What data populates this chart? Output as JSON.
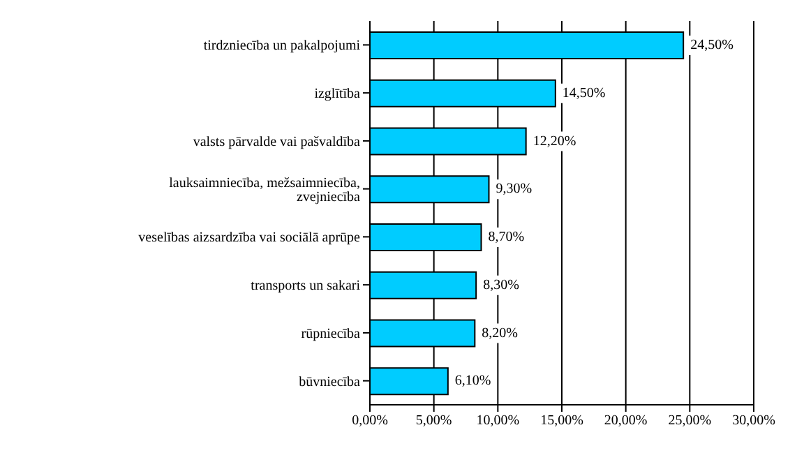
{
  "chart_data": {
    "type": "bar",
    "orientation": "horizontal",
    "categories": [
      "tirdzniecība un pakalpojumi",
      "izglītība",
      "valsts pārvalde vai pašvaldība",
      "lauksaimniecība, mežsaimniecība, zvejniecība",
      "veselības aizsardzība vai sociālā aprūpe",
      "transports un sakari",
      "rūpniecība",
      "būvniecība"
    ],
    "values": [
      24.5,
      14.5,
      12.2,
      9.3,
      8.7,
      8.3,
      8.2,
      6.1
    ],
    "value_labels": [
      "24,50%",
      "14,50%",
      "12,20%",
      "9,30%",
      "8,70%",
      "8,30%",
      "8,20%",
      "6,10%"
    ],
    "color": "#00ccff",
    "xlim": [
      0,
      30
    ],
    "xticks": [
      {
        "value": 0,
        "label": "0,00%"
      },
      {
        "value": 5,
        "label": "5,00%"
      },
      {
        "value": 10,
        "label": "10,00%"
      },
      {
        "value": 15,
        "label": "15,00%"
      },
      {
        "value": 20,
        "label": "20,00%"
      },
      {
        "value": 25,
        "label": "25,00%"
      },
      {
        "value": 30,
        "label": "30,00%"
      }
    ],
    "grid": "x",
    "legend": false
  }
}
